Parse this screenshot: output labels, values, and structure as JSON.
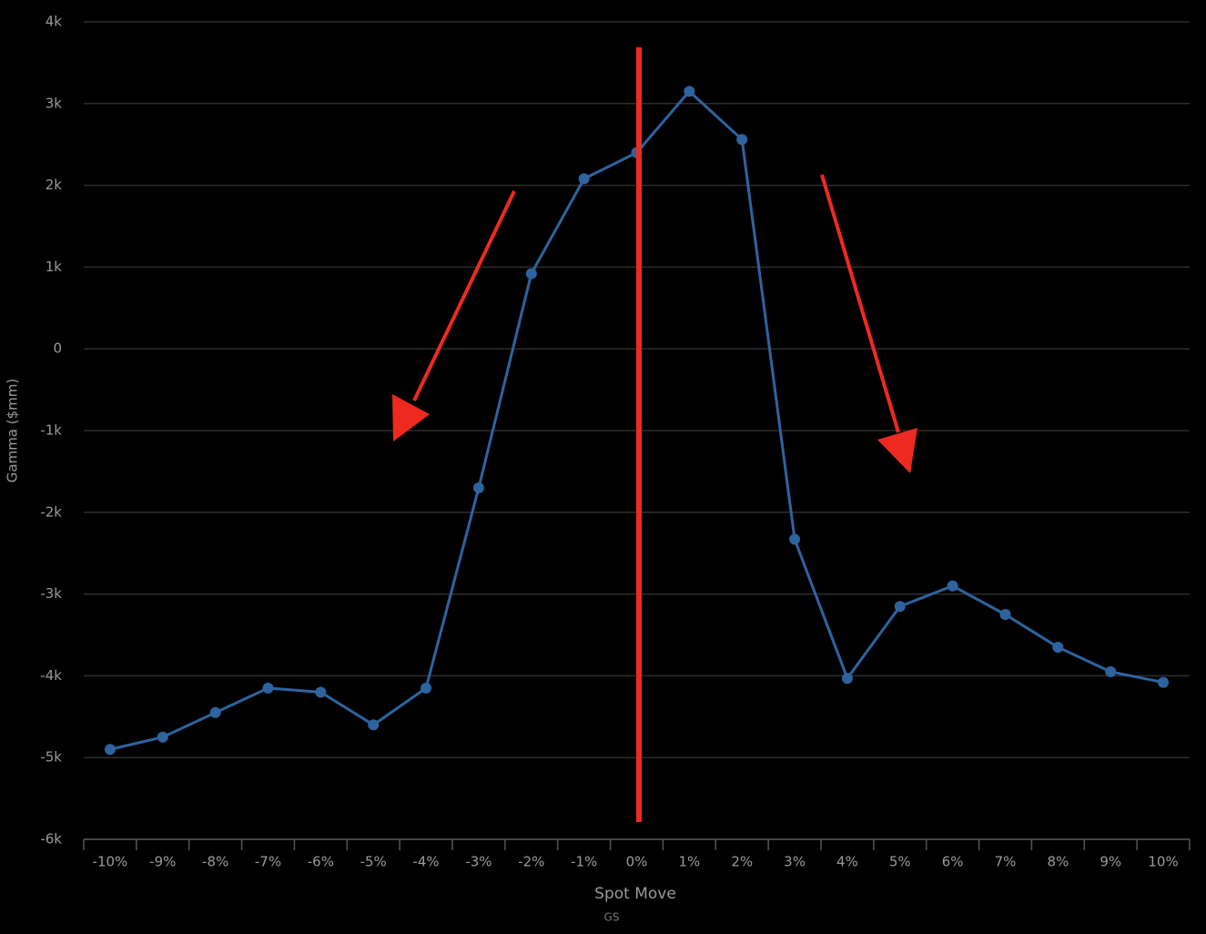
{
  "chart_data": {
    "type": "line",
    "y_label": "Gamma ($mm)",
    "x_label": "Spot Move",
    "source": "GS",
    "categories": [
      "-10%",
      "-9%",
      "-8%",
      "-7%",
      "-6%",
      "-5%",
      "-4%",
      "-3%",
      "-2%",
      "-1%",
      "0%",
      "1%",
      "2%",
      "3%",
      "4%",
      "5%",
      "6%",
      "7%",
      "8%",
      "9%",
      "10%"
    ],
    "values": [
      -4900,
      -4750,
      -4450,
      -4150,
      -4200,
      -4600,
      -4150,
      -1700,
      920,
      2080,
      2400,
      3150,
      2560,
      -2330,
      -4030,
      -3150,
      -2900,
      -3250,
      -3650,
      -3950,
      -4080
    ],
    "color": "#2d64a0",
    "ylim": [
      -6000,
      4000
    ],
    "yticks": [
      {
        "value": 4000,
        "label": "4k"
      },
      {
        "value": 3000,
        "label": "3k"
      },
      {
        "value": 2000,
        "label": "2k"
      },
      {
        "value": 1000,
        "label": "1k"
      },
      0,
      {
        "value": -1000,
        "label": "-1k"
      },
      {
        "value": -2000,
        "label": "-2k"
      },
      {
        "value": -3000,
        "label": "-3k"
      },
      {
        "value": -4000,
        "label": "-4k"
      },
      {
        "value": -5000,
        "label": "-5k"
      },
      {
        "value": -6000,
        "label": "-6k"
      }
    ],
    "grid": true
  }
}
